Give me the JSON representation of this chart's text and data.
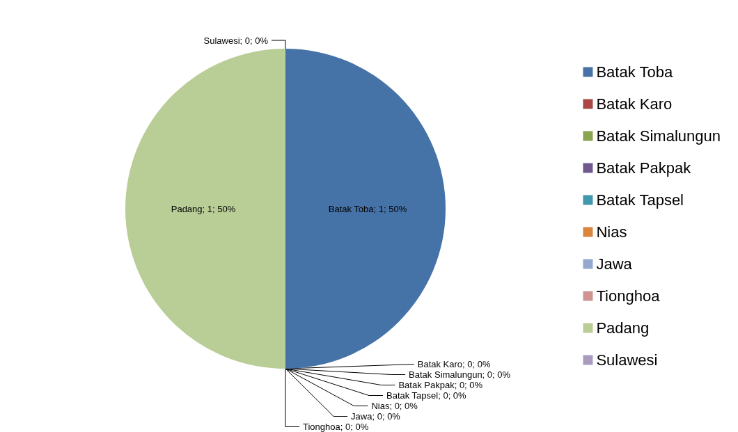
{
  "chart_data": {
    "type": "pie",
    "categories": [
      "Batak Toba",
      "Batak Karo",
      "Batak Simalungun",
      "Batak Pakpak",
      "Batak Tapsel",
      "Nias",
      "Jawa",
      "Tionghoa",
      "Padang",
      "Sulawesi"
    ],
    "values": [
      1,
      0,
      0,
      0,
      0,
      0,
      0,
      0,
      1,
      0
    ],
    "colors": [
      "#4572a7",
      "#aa4643",
      "#89a54e",
      "#71588f",
      "#4198af",
      "#db843d",
      "#93a9cf",
      "#d19392",
      "#b9cd96",
      "#a99bbd"
    ],
    "value_labels": [
      "Batak Toba; 1; 50%",
      "Batak Karo; 0; 0%",
      "Batak Simalungun; 0; 0%",
      "Batak Pakpak; 0; 0%",
      "Batak Tapsel; 0; 0%",
      "Nias; 0; 0%",
      "Jawa; 0; 0%",
      "Tionghoa; 0; 0%",
      "Padang; 1; 50%",
      "Sulawesi; 0; 0%"
    ],
    "legend": "right"
  }
}
